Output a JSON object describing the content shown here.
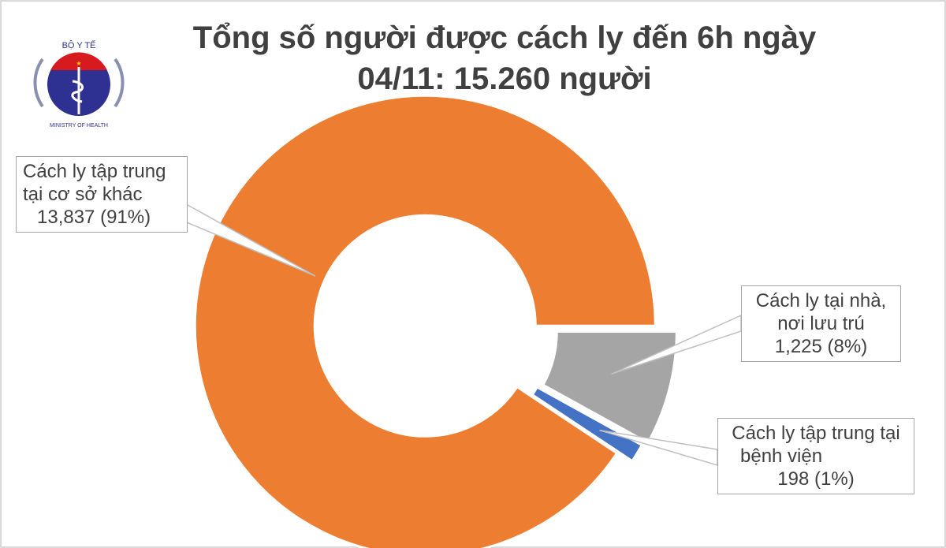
{
  "logo": {
    "top_text": "BỘ Y TẾ",
    "bottom_text": "MINISTRY OF HEALTH"
  },
  "chart_data": {
    "type": "pie",
    "variant": "donut",
    "title_line1": "Tổng số người được cách ly đến 6h ngày",
    "title_line2": "04/11: 15.260 người",
    "total": 15260,
    "slices": [
      {
        "label_line1": "Cách ly tại nhà,",
        "label_line2": "nơi lưu trú",
        "value_text": "1,225 (8%)",
        "value": 1225,
        "percent": 8,
        "color": "#a5a5a5"
      },
      {
        "label_line1": "Cách ly tập trung tại",
        "label_line2": "bệnh viện",
        "value_text": "198 (1%)",
        "value": 198,
        "percent": 1,
        "color": "#4472c4"
      },
      {
        "label_line1": "Cách ly tập trung",
        "label_line2": "tại cơ sở khác",
        "value_text": "13,837 (91%)",
        "value": 13837,
        "percent": 91,
        "color": "#ed7d31"
      }
    ]
  }
}
